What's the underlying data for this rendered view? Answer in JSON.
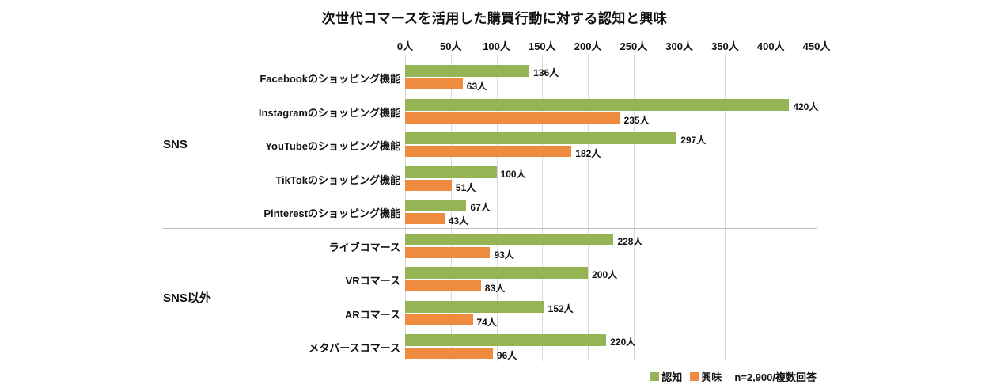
{
  "page": {
    "background": "#ffffff"
  },
  "chart_data": {
    "type": "bar",
    "orientation": "horizontal",
    "title": "次世代コマースを活用した購買行動に対する認知と興味",
    "unit": "人",
    "xlim": [
      0,
      450
    ],
    "x_ticks": [
      0,
      50,
      100,
      150,
      200,
      250,
      300,
      350,
      400,
      450
    ],
    "grid": true,
    "legend_position": "bottom-right",
    "axis_position": "top",
    "series": [
      {
        "name": "認知",
        "color": "#95b455"
      },
      {
        "name": "興味",
        "color": "#ee8b3e"
      }
    ],
    "groups": [
      {
        "name": "SNS",
        "rows": [
          {
            "label": "Facebookのショッピング機能",
            "values": [
              136,
              63
            ]
          },
          {
            "label": "Instagramのショッピング機能",
            "values": [
              420,
              235
            ]
          },
          {
            "label": "YouTubeのショッピング機能",
            "values": [
              297,
              182
            ]
          },
          {
            "label": "TikTokのショッピング機能",
            "values": [
              100,
              51
            ]
          },
          {
            "label": "Pinterestのショッピング機能",
            "values": [
              67,
              43
            ]
          }
        ]
      },
      {
        "name": "SNS以外",
        "rows": [
          {
            "label": "ライブコマース",
            "values": [
              228,
              93
            ]
          },
          {
            "label": "VRコマース",
            "values": [
              200,
              83
            ]
          },
          {
            "label": "ARコマース",
            "values": [
              152,
              74
            ]
          },
          {
            "label": "メタバースコマース",
            "values": [
              220,
              96
            ]
          }
        ]
      }
    ],
    "note": "n=2,900/複数回答"
  }
}
